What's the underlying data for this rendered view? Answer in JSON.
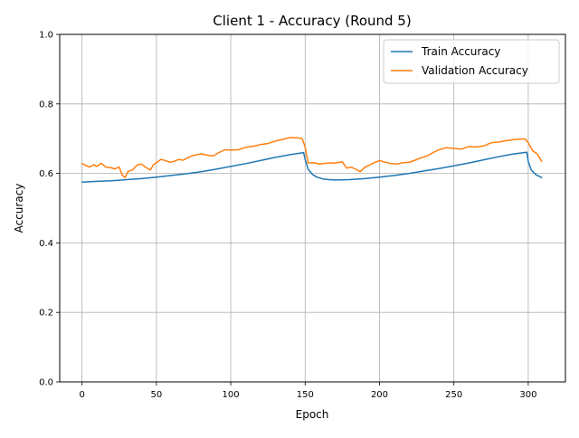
{
  "chart_data": {
    "type": "line",
    "title": "Client 1 - Accuracy (Round 5)",
    "xlabel": "Epoch",
    "ylabel": "Accuracy",
    "xlim": [
      -15,
      325
    ],
    "ylim": [
      0.0,
      1.0
    ],
    "xticks": [
      0,
      50,
      100,
      150,
      200,
      250,
      300
    ],
    "xtick_labels": [
      "0",
      "50",
      "100",
      "150",
      "200",
      "250",
      "300"
    ],
    "yticks": [
      0.0,
      0.2,
      0.4,
      0.6,
      0.8,
      1.0
    ],
    "ytick_labels": [
      "0.0",
      "0.2",
      "0.4",
      "0.6",
      "0.8",
      "1.0"
    ],
    "grid": true,
    "legend_position": "top-right",
    "series": [
      {
        "name": "Train Accuracy",
        "color": "#1f77b4",
        "x": [
          0,
          10,
          20,
          30,
          40,
          50,
          60,
          70,
          80,
          90,
          100,
          110,
          120,
          130,
          140,
          149,
          150,
          152,
          155,
          158,
          162,
          166,
          170,
          180,
          190,
          200,
          210,
          220,
          230,
          240,
          250,
          260,
          270,
          280,
          290,
          299,
          300,
          302,
          305,
          309
        ],
        "y": [
          0.575,
          0.577,
          0.579,
          0.582,
          0.585,
          0.589,
          0.594,
          0.599,
          0.605,
          0.612,
          0.62,
          0.628,
          0.637,
          0.646,
          0.654,
          0.66,
          0.64,
          0.612,
          0.597,
          0.589,
          0.584,
          0.582,
          0.581,
          0.582,
          0.585,
          0.589,
          0.594,
          0.6,
          0.607,
          0.614,
          0.622,
          0.63,
          0.639,
          0.648,
          0.656,
          0.661,
          0.634,
          0.61,
          0.597,
          0.588
        ]
      },
      {
        "name": "Validation Accuracy",
        "color": "#ff7f0e",
        "x": [
          0,
          3,
          5,
          8,
          10,
          13,
          16,
          19,
          22,
          25,
          27,
          29,
          31,
          34,
          37,
          40,
          43,
          46,
          48,
          50,
          53,
          56,
          59,
          62,
          65,
          68,
          71,
          75,
          80,
          85,
          88,
          92,
          96,
          100,
          105,
          110,
          115,
          120,
          125,
          130,
          135,
          140,
          145,
          148,
          150,
          152,
          155,
          160,
          165,
          170,
          175,
          178,
          181,
          184,
          187,
          190,
          195,
          200,
          204,
          208,
          212,
          216,
          220,
          224,
          228,
          232,
          236,
          240,
          245,
          250,
          255,
          260,
          265,
          270,
          275,
          280,
          285,
          290,
          295,
          298,
          300,
          303,
          306,
          309
        ],
        "y": [
          0.628,
          0.622,
          0.618,
          0.625,
          0.62,
          0.629,
          0.618,
          0.617,
          0.613,
          0.618,
          0.595,
          0.588,
          0.606,
          0.61,
          0.624,
          0.627,
          0.617,
          0.61,
          0.625,
          0.631,
          0.64,
          0.637,
          0.632,
          0.635,
          0.64,
          0.638,
          0.645,
          0.652,
          0.656,
          0.652,
          0.65,
          0.66,
          0.668,
          0.667,
          0.668,
          0.675,
          0.678,
          0.683,
          0.686,
          0.693,
          0.698,
          0.703,
          0.702,
          0.7,
          0.676,
          0.63,
          0.631,
          0.627,
          0.63,
          0.63,
          0.633,
          0.615,
          0.618,
          0.612,
          0.605,
          0.617,
          0.628,
          0.637,
          0.632,
          0.628,
          0.627,
          0.631,
          0.632,
          0.638,
          0.645,
          0.65,
          0.66,
          0.668,
          0.674,
          0.672,
          0.67,
          0.677,
          0.676,
          0.679,
          0.688,
          0.69,
          0.694,
          0.697,
          0.699,
          0.699,
          0.688,
          0.665,
          0.656,
          0.635
        ]
      }
    ]
  }
}
